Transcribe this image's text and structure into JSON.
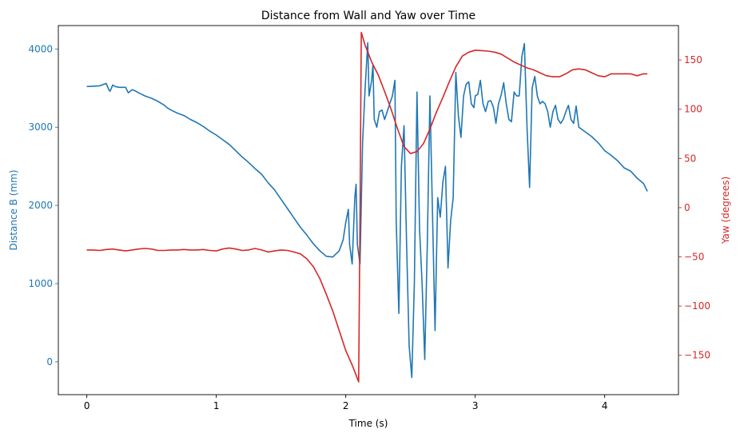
{
  "chart_data": {
    "type": "line",
    "title": "Distance from Wall and Yaw over Time",
    "xlabel": "Time (s)",
    "ylabel_left": "Distance B (mm)",
    "ylabel_right": "Yaw (degrees)",
    "xlim": [
      -0.22,
      4.57
    ],
    "ylim_left": [
      -420,
      4300
    ],
    "ylim_right": [
      -190,
      185
    ],
    "x_ticks": [
      0,
      1,
      2,
      3,
      4
    ],
    "y_ticks_left": [
      0,
      1000,
      2000,
      3000,
      4000
    ],
    "y_ticks_right": [
      -150,
      -100,
      -50,
      0,
      50,
      100,
      150
    ],
    "grid": false,
    "colors": {
      "left": "#1f77b4",
      "right": "#d62728"
    },
    "series": [
      {
        "axis": "left",
        "points": [
          [
            0.0,
            3520
          ],
          [
            0.05,
            3525
          ],
          [
            0.1,
            3530
          ],
          [
            0.15,
            3560
          ],
          [
            0.17,
            3480
          ],
          [
            0.18,
            3460
          ],
          [
            0.2,
            3540
          ],
          [
            0.22,
            3520
          ],
          [
            0.25,
            3510
          ],
          [
            0.3,
            3510
          ],
          [
            0.32,
            3440
          ],
          [
            0.35,
            3480
          ],
          [
            0.38,
            3460
          ],
          [
            0.4,
            3440
          ],
          [
            0.45,
            3400
          ],
          [
            0.5,
            3370
          ],
          [
            0.55,
            3330
          ],
          [
            0.6,
            3280
          ],
          [
            0.62,
            3250
          ],
          [
            0.65,
            3220
          ],
          [
            0.7,
            3180
          ],
          [
            0.75,
            3150
          ],
          [
            0.8,
            3100
          ],
          [
            0.85,
            3060
          ],
          [
            0.9,
            3010
          ],
          [
            0.95,
            2950
          ],
          [
            1.0,
            2900
          ],
          [
            1.05,
            2840
          ],
          [
            1.1,
            2780
          ],
          [
            1.15,
            2700
          ],
          [
            1.2,
            2620
          ],
          [
            1.25,
            2550
          ],
          [
            1.3,
            2470
          ],
          [
            1.35,
            2400
          ],
          [
            1.4,
            2290
          ],
          [
            1.45,
            2200
          ],
          [
            1.5,
            2080
          ],
          [
            1.55,
            1960
          ],
          [
            1.6,
            1840
          ],
          [
            1.65,
            1720
          ],
          [
            1.7,
            1620
          ],
          [
            1.75,
            1510
          ],
          [
            1.8,
            1420
          ],
          [
            1.85,
            1350
          ],
          [
            1.9,
            1340
          ],
          [
            1.95,
            1420
          ],
          [
            1.98,
            1560
          ],
          [
            2.0,
            1780
          ],
          [
            2.02,
            1950
          ],
          [
            2.03,
            1500
          ],
          [
            2.05,
            1250
          ],
          [
            2.07,
            2100
          ],
          [
            2.08,
            2270
          ],
          [
            2.09,
            1500
          ],
          [
            2.11,
            1250
          ],
          [
            2.13,
            2800
          ],
          [
            2.15,
            3500
          ],
          [
            2.17,
            4080
          ],
          [
            2.18,
            3400
          ],
          [
            2.2,
            3600
          ],
          [
            2.21,
            3800
          ],
          [
            2.22,
            3100
          ],
          [
            2.24,
            3000
          ],
          [
            2.26,
            3200
          ],
          [
            2.28,
            3220
          ],
          [
            2.3,
            3100
          ],
          [
            2.32,
            3200
          ],
          [
            2.34,
            3300
          ],
          [
            2.36,
            3400
          ],
          [
            2.38,
            3600
          ],
          [
            2.39,
            1800
          ],
          [
            2.41,
            620
          ],
          [
            2.43,
            2500
          ],
          [
            2.45,
            3020
          ],
          [
            2.47,
            1500
          ],
          [
            2.49,
            200
          ],
          [
            2.51,
            -200
          ],
          [
            2.53,
            1000
          ],
          [
            2.55,
            3450
          ],
          [
            2.57,
            1700
          ],
          [
            2.59,
            1000
          ],
          [
            2.61,
            30
          ],
          [
            2.63,
            1500
          ],
          [
            2.65,
            3400
          ],
          [
            2.67,
            1900
          ],
          [
            2.69,
            400
          ],
          [
            2.71,
            2100
          ],
          [
            2.73,
            1850
          ],
          [
            2.75,
            2300
          ],
          [
            2.77,
            2500
          ],
          [
            2.79,
            1200
          ],
          [
            2.81,
            1800
          ],
          [
            2.83,
            2100
          ],
          [
            2.85,
            3700
          ],
          [
            2.87,
            3150
          ],
          [
            2.89,
            2870
          ],
          [
            2.91,
            3400
          ],
          [
            2.93,
            3550
          ],
          [
            2.95,
            3580
          ],
          [
            2.97,
            3300
          ],
          [
            2.99,
            3250
          ],
          [
            3.0,
            3400
          ],
          [
            3.02,
            3420
          ],
          [
            3.04,
            3600
          ],
          [
            3.06,
            3300
          ],
          [
            3.08,
            3200
          ],
          [
            3.1,
            3330
          ],
          [
            3.12,
            3340
          ],
          [
            3.14,
            3260
          ],
          [
            3.16,
            3050
          ],
          [
            3.18,
            3300
          ],
          [
            3.2,
            3410
          ],
          [
            3.22,
            3570
          ],
          [
            3.24,
            3300
          ],
          [
            3.26,
            3100
          ],
          [
            3.28,
            3070
          ],
          [
            3.3,
            3450
          ],
          [
            3.32,
            3400
          ],
          [
            3.34,
            3400
          ],
          [
            3.36,
            3900
          ],
          [
            3.38,
            4070
          ],
          [
            3.4,
            3000
          ],
          [
            3.42,
            2230
          ],
          [
            3.44,
            3500
          ],
          [
            3.46,
            3650
          ],
          [
            3.48,
            3400
          ],
          [
            3.5,
            3300
          ],
          [
            3.52,
            3330
          ],
          [
            3.54,
            3300
          ],
          [
            3.56,
            3200
          ],
          [
            3.58,
            3000
          ],
          [
            3.6,
            3200
          ],
          [
            3.62,
            3280
          ],
          [
            3.64,
            3100
          ],
          [
            3.66,
            3050
          ],
          [
            3.68,
            3100
          ],
          [
            3.7,
            3200
          ],
          [
            3.72,
            3280
          ],
          [
            3.74,
            3100
          ],
          [
            3.76,
            3050
          ],
          [
            3.78,
            3270
          ],
          [
            3.8,
            3000
          ],
          [
            3.85,
            2940
          ],
          [
            3.9,
            2880
          ],
          [
            3.95,
            2800
          ],
          [
            4.0,
            2700
          ],
          [
            4.05,
            2640
          ],
          [
            4.1,
            2570
          ],
          [
            4.15,
            2480
          ],
          [
            4.2,
            2440
          ],
          [
            4.25,
            2350
          ],
          [
            4.3,
            2280
          ],
          [
            4.33,
            2180
          ]
        ]
      },
      {
        "axis": "right",
        "points": [
          [
            0.0,
            -43
          ],
          [
            0.05,
            -43
          ],
          [
            0.1,
            -43.5
          ],
          [
            0.15,
            -42.5
          ],
          [
            0.2,
            -42
          ],
          [
            0.25,
            -43
          ],
          [
            0.3,
            -44
          ],
          [
            0.35,
            -43
          ],
          [
            0.4,
            -42
          ],
          [
            0.45,
            -41.5
          ],
          [
            0.5,
            -42
          ],
          [
            0.55,
            -43.5
          ],
          [
            0.6,
            -43.5
          ],
          [
            0.65,
            -43
          ],
          [
            0.7,
            -43
          ],
          [
            0.75,
            -42.5
          ],
          [
            0.8,
            -43
          ],
          [
            0.85,
            -43
          ],
          [
            0.9,
            -42.5
          ],
          [
            0.95,
            -43.5
          ],
          [
            1.0,
            -44
          ],
          [
            1.05,
            -42
          ],
          [
            1.1,
            -41
          ],
          [
            1.15,
            -42
          ],
          [
            1.2,
            -43.5
          ],
          [
            1.25,
            -43
          ],
          [
            1.3,
            -41.5
          ],
          [
            1.35,
            -43
          ],
          [
            1.4,
            -45
          ],
          [
            1.45,
            -44
          ],
          [
            1.5,
            -43
          ],
          [
            1.55,
            -43.5
          ],
          [
            1.6,
            -45
          ],
          [
            1.65,
            -47
          ],
          [
            1.7,
            -52
          ],
          [
            1.75,
            -60
          ],
          [
            1.8,
            -72
          ],
          [
            1.85,
            -88
          ],
          [
            1.9,
            -105
          ],
          [
            1.95,
            -125
          ],
          [
            2.0,
            -145
          ],
          [
            2.05,
            -160
          ],
          [
            2.08,
            -170
          ],
          [
            2.1,
            -177
          ],
          [
            2.11,
            -10
          ],
          [
            2.12,
            178
          ],
          [
            2.15,
            165
          ],
          [
            2.2,
            148
          ],
          [
            2.25,
            135
          ],
          [
            2.3,
            118
          ],
          [
            2.35,
            100
          ],
          [
            2.4,
            80
          ],
          [
            2.45,
            62
          ],
          [
            2.5,
            55
          ],
          [
            2.55,
            57
          ],
          [
            2.6,
            65
          ],
          [
            2.65,
            80
          ],
          [
            2.7,
            97
          ],
          [
            2.75,
            112
          ],
          [
            2.8,
            128
          ],
          [
            2.85,
            143
          ],
          [
            2.9,
            154
          ],
          [
            2.95,
            158
          ],
          [
            3.0,
            160
          ],
          [
            3.05,
            159.5
          ],
          [
            3.1,
            159
          ],
          [
            3.15,
            158
          ],
          [
            3.2,
            156
          ],
          [
            3.25,
            152
          ],
          [
            3.3,
            148
          ],
          [
            3.35,
            145
          ],
          [
            3.4,
            142
          ],
          [
            3.45,
            140
          ],
          [
            3.5,
            137
          ],
          [
            3.55,
            134
          ],
          [
            3.6,
            133
          ],
          [
            3.65,
            133
          ],
          [
            3.7,
            136
          ],
          [
            3.75,
            140
          ],
          [
            3.8,
            141
          ],
          [
            3.85,
            140
          ],
          [
            3.9,
            137
          ],
          [
            3.95,
            134
          ],
          [
            4.0,
            133
          ],
          [
            4.05,
            136
          ],
          [
            4.1,
            136
          ],
          [
            4.15,
            136
          ],
          [
            4.2,
            136
          ],
          [
            4.25,
            134
          ],
          [
            4.3,
            136
          ],
          [
            4.33,
            136
          ]
        ]
      }
    ]
  }
}
